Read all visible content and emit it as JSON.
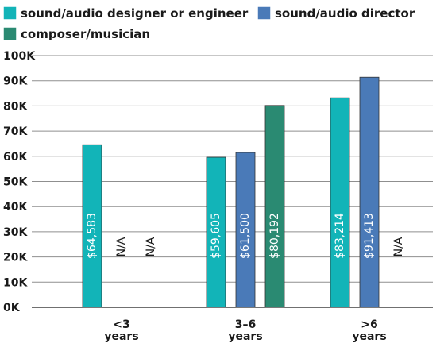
{
  "chart_data": {
    "type": "bar",
    "categories": [
      "<3 years",
      "3–6 years",
      ">6 years"
    ],
    "category_lines": [
      [
        "<3",
        "years"
      ],
      [
        "3–6",
        "years"
      ],
      [
        ">6",
        "years"
      ]
    ],
    "series": [
      {
        "name": "sound/audio designer or engineer",
        "color": "#12b4b8",
        "values": [
          64583,
          59605,
          83214
        ],
        "labels": [
          "$64,583",
          "$59,605",
          "$83,214"
        ]
      },
      {
        "name": "sound/audio director",
        "color": "#4a7ab8",
        "values": [
          null,
          61500,
          91413
        ],
        "labels": [
          "N/A",
          "$61,500",
          "$91,413"
        ]
      },
      {
        "name": "composer/musician",
        "color": "#2a8a72",
        "values": [
          null,
          80192,
          null
        ],
        "labels": [
          "N/A",
          "$80,192",
          "N/A"
        ]
      }
    ],
    "ylim": [
      0,
      100000
    ],
    "yticks": [
      "0K",
      "10K",
      "20K",
      "30K",
      "40K",
      "50K",
      "60K",
      "70K",
      "80K",
      "90K",
      "100K"
    ],
    "grid": true,
    "legend_position": "top-left"
  }
}
